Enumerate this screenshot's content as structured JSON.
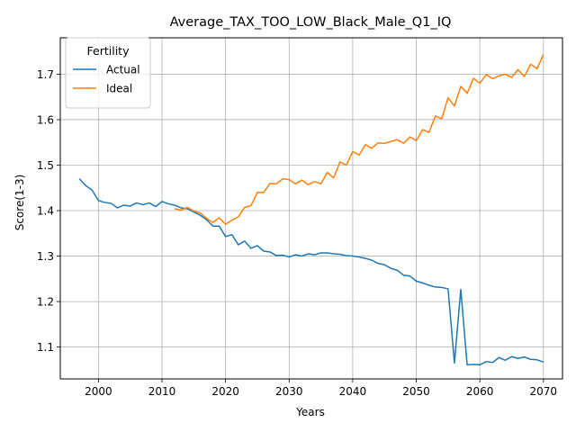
{
  "chart_data": {
    "type": "line",
    "title": "Average_TAX_TOO_LOW_Black_Male_Q1_IQ",
    "xlabel": "Years",
    "ylabel": "Score(1-3)",
    "xlim": [
      1994,
      2073
    ],
    "ylim": [
      1.03,
      1.78
    ],
    "xticks": [
      2000,
      2010,
      2020,
      2030,
      2040,
      2050,
      2060,
      2070
    ],
    "yticks": [
      1.1,
      1.2,
      1.3,
      1.4,
      1.5,
      1.6,
      1.7
    ],
    "grid": true,
    "legend": {
      "title": "Fertility",
      "position": "top-left"
    },
    "series": [
      {
        "name": "Actual",
        "color": "#1f77b4",
        "x": [
          1997,
          1998,
          1999,
          2000,
          2001,
          2002,
          2003,
          2004,
          2005,
          2006,
          2007,
          2008,
          2009,
          2010,
          2011,
          2012,
          2013,
          2014,
          2015,
          2016,
          2017,
          2018,
          2019,
          2020,
          2021,
          2022,
          2023,
          2024,
          2025,
          2026,
          2027,
          2028,
          2029,
          2030,
          2031,
          2032,
          2033,
          2034,
          2035,
          2036,
          2037,
          2038,
          2039,
          2040,
          2041,
          2042,
          2043,
          2044,
          2045,
          2046,
          2047,
          2048,
          2049,
          2050,
          2051,
          2052,
          2053,
          2054,
          2055,
          2056,
          2057,
          2058,
          2059,
          2060,
          2061,
          2062,
          2063,
          2064,
          2065,
          2066,
          2067,
          2068,
          2069,
          2070
        ],
        "y": [
          1.47,
          1.455,
          1.445,
          1.422,
          1.418,
          1.416,
          1.406,
          1.412,
          1.41,
          1.417,
          1.413,
          1.417,
          1.409,
          1.42,
          1.415,
          1.412,
          1.406,
          1.404,
          1.397,
          1.39,
          1.38,
          1.366,
          1.366,
          1.343,
          1.347,
          1.325,
          1.333,
          1.317,
          1.323,
          1.311,
          1.309,
          1.301,
          1.302,
          1.298,
          1.303,
          1.3,
          1.305,
          1.303,
          1.307,
          1.307,
          1.305,
          1.304,
          1.301,
          1.3,
          1.298,
          1.295,
          1.291,
          1.284,
          1.281,
          1.273,
          1.269,
          1.258,
          1.256,
          1.245,
          1.241,
          1.236,
          1.232,
          1.231,
          1.228,
          1.065,
          1.227,
          1.061,
          1.062,
          1.061,
          1.068,
          1.066,
          1.077,
          1.071,
          1.079,
          1.075,
          1.078,
          1.073,
          1.072,
          1.067
        ]
      },
      {
        "name": "Ideal",
        "color": "#ff7f0e",
        "x": [
          2012,
          2013,
          2014,
          2015,
          2016,
          2017,
          2018,
          2019,
          2020,
          2021,
          2022,
          2023,
          2024,
          2025,
          2026,
          2027,
          2028,
          2029,
          2030,
          2031,
          2032,
          2033,
          2034,
          2035,
          2036,
          2037,
          2038,
          2039,
          2040,
          2041,
          2042,
          2043,
          2044,
          2045,
          2046,
          2047,
          2048,
          2049,
          2050,
          2051,
          2052,
          2053,
          2054,
          2055,
          2056,
          2057,
          2058,
          2059,
          2060,
          2061,
          2062,
          2063,
          2064,
          2065,
          2066,
          2067,
          2068,
          2069,
          2070
        ],
        "y": [
          1.404,
          1.401,
          1.407,
          1.399,
          1.395,
          1.383,
          1.374,
          1.384,
          1.37,
          1.379,
          1.386,
          1.407,
          1.411,
          1.44,
          1.44,
          1.46,
          1.459,
          1.47,
          1.468,
          1.459,
          1.467,
          1.457,
          1.464,
          1.459,
          1.484,
          1.472,
          1.507,
          1.5,
          1.53,
          1.522,
          1.545,
          1.537,
          1.549,
          1.548,
          1.552,
          1.556,
          1.548,
          1.562,
          1.554,
          1.578,
          1.572,
          1.608,
          1.602,
          1.648,
          1.63,
          1.673,
          1.658,
          1.691,
          1.68,
          1.699,
          1.69,
          1.696,
          1.7,
          1.693,
          1.71,
          1.695,
          1.722,
          1.712,
          1.743
        ]
      }
    ]
  }
}
